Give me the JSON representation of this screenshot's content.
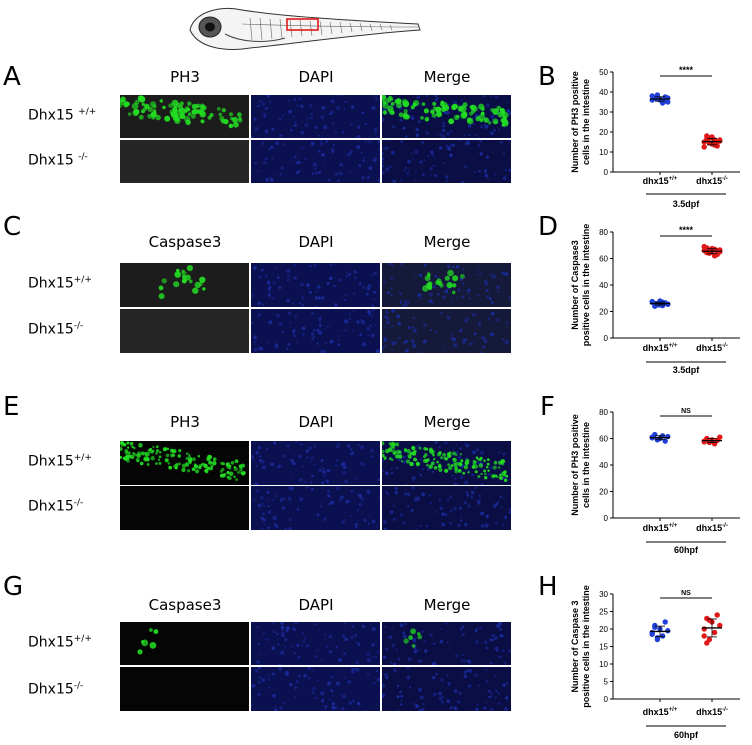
{
  "figure": {
    "panels": {
      "A": "A",
      "B": "B",
      "C": "C",
      "D": "D",
      "E": "E",
      "F": "F",
      "G": "G",
      "H": "H"
    },
    "rows": [
      {
        "id": "A",
        "columns": [
          "PH3",
          "DAPI",
          "Merge"
        ],
        "labels": [
          {
            "base": "Dhx15 ",
            "sup": "+/+"
          },
          {
            "base": "Dhx15 ",
            "sup": "-/-"
          }
        ]
      },
      {
        "id": "C",
        "columns": [
          "Caspase3",
          "DAPI",
          "Merge"
        ],
        "labels": [
          {
            "base": "Dhx15",
            "sup": "+/+"
          },
          {
            "base": "Dhx15",
            "sup": "-/-"
          }
        ]
      },
      {
        "id": "E",
        "columns": [
          "PH3",
          "DAPI",
          "Merge"
        ],
        "labels": [
          {
            "base": "Dhx15",
            "sup": "+/+"
          },
          {
            "base": "Dhx15",
            "sup": "-/-"
          }
        ]
      },
      {
        "id": "G",
        "columns": [
          "Caspase3",
          "DAPI",
          "Merge"
        ],
        "labels": [
          {
            "base": "Dhx15",
            "sup": "+/+"
          },
          {
            "base": "Dhx15",
            "sup": "-/-"
          }
        ]
      }
    ],
    "colors": {
      "wt": "#1f3fd6",
      "mut": "#e01818",
      "green": "#22dd22",
      "blue": "#1a2a9a"
    }
  },
  "chart_data": [
    {
      "type": "scatter",
      "panel": "B",
      "ylabel": [
        "Number of PH3 positive",
        "cells  in the intestine"
      ],
      "ylim": [
        0,
        50
      ],
      "yticks": [
        0,
        10,
        20,
        30,
        40,
        50
      ],
      "categories": [
        {
          "base": "dhx15",
          "sup": "+/+"
        },
        {
          "base": "dhx15",
          "sup": "-/-"
        }
      ],
      "group_label": "3.5dpf",
      "significance": "****",
      "series": [
        {
          "values": [
            38,
            37,
            36.5,
            36,
            35.5,
            37.5,
            35,
            36,
            37,
            38.5,
            36.5,
            34.5,
            35.5,
            37
          ]
        },
        {
          "values": [
            15,
            18,
            17,
            14,
            16,
            13,
            15.5,
            12.5,
            16.5,
            14.5,
            17.5,
            13.5,
            15,
            16
          ]
        }
      ],
      "means": [
        36.5,
        15.2
      ]
    },
    {
      "type": "scatter",
      "panel": "D",
      "ylabel": [
        "Number of  Caspase3",
        "positive cells in the intestine"
      ],
      "ylim": [
        0,
        80
      ],
      "yticks": [
        0,
        20,
        40,
        60,
        80
      ],
      "categories": [
        {
          "base": "dhx15",
          "sup": "+/+"
        },
        {
          "base": "dhx15",
          "sup": "-/-"
        }
      ],
      "group_label": "3.5dpf",
      "significance": "****",
      "series": [
        {
          "values": [
            27,
            26,
            25,
            28,
            24.5,
            26.5,
            25.5,
            27.5,
            24,
            26,
            25,
            27,
            26.5,
            25.5
          ]
        },
        {
          "values": [
            66,
            68,
            64,
            65,
            67,
            63,
            66.5,
            69,
            64.5,
            65.5,
            67.5,
            62,
            66,
            65
          ]
        }
      ],
      "means": [
        26,
        65.5
      ]
    },
    {
      "type": "scatter",
      "panel": "F",
      "ylabel": [
        "Number of  PH3 positive",
        "cells in the intestine"
      ],
      "ylim": [
        0,
        80
      ],
      "yticks": [
        0,
        20,
        40,
        60,
        80
      ],
      "categories": [
        {
          "base": "dhx15",
          "sup": "+/+"
        },
        {
          "base": "dhx15",
          "sup": "-/-"
        }
      ],
      "group_label": "60hpf",
      "significance": "NS",
      "series": [
        {
          "values": [
            61,
            63,
            59,
            60,
            62,
            58,
            61.5,
            60.5
          ]
        },
        {
          "values": [
            58,
            60,
            57,
            59,
            56,
            58.5,
            61,
            57.5
          ]
        }
      ],
      "means": [
        60.6,
        58.4
      ]
    },
    {
      "type": "scatter",
      "panel": "H",
      "ylabel": [
        "Number of  Caspase 3",
        "positive cells in the intestine"
      ],
      "ylim": [
        0,
        30
      ],
      "yticks": [
        0,
        5,
        10,
        15,
        20,
        25,
        30
      ],
      "categories": [
        {
          "base": "dhx15",
          "sup": "+/+"
        },
        {
          "base": "dhx15",
          "sup": "-/-"
        }
      ],
      "group_label": "60hpf",
      "significance": "NS",
      "series": [
        {
          "values": [
            19,
            21,
            17,
            20,
            18,
            22,
            19.5,
            18.5,
            20.5,
            17.5
          ]
        },
        {
          "values": [
            20,
            23,
            17,
            22,
            19,
            24,
            21,
            18,
            16,
            22.5
          ]
        }
      ],
      "means": [
        19.3,
        20.3
      ]
    }
  ]
}
